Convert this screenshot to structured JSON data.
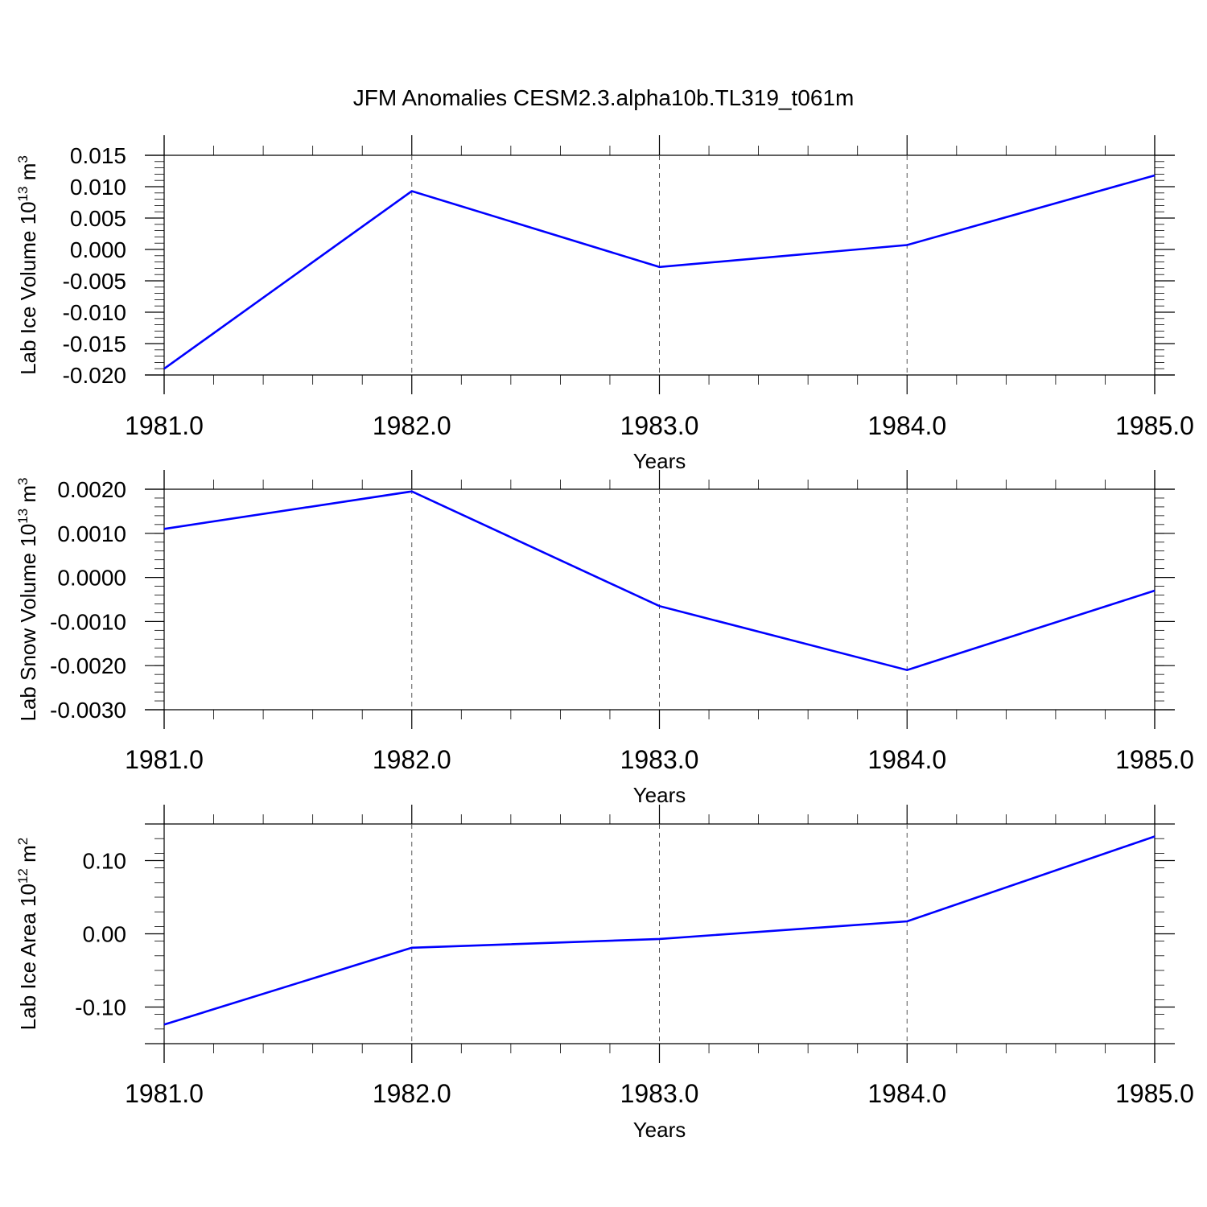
{
  "title": "JFM Anomalies CESM2.3.alpha10b.TL319_t061m",
  "chart_data": [
    {
      "type": "line",
      "ylabel": "Lab Ice Volume 10",
      "ylabel_exp": "13",
      "ylabel_unit": " m",
      "ylabel_unit_exp": "3",
      "xlabel": "Years",
      "x": [
        1981.0,
        1982.0,
        1983.0,
        1984.0,
        1985.0
      ],
      "x_tick_labels": [
        "1981.0",
        "1982.0",
        "1983.0",
        "1984.0",
        "1985.0"
      ],
      "y_tick_values": [
        0.015,
        0.01,
        0.005,
        0.0,
        -0.005,
        -0.01,
        -0.015,
        -0.02
      ],
      "y_tick_labels": [
        "0.015",
        "0.010",
        "0.005",
        "0.000",
        "-0.005",
        "-0.010",
        "-0.015",
        "-0.020"
      ],
      "ylim": [
        -0.02,
        0.015
      ],
      "xlim": [
        1981.0,
        1985.0
      ],
      "series": [
        {
          "values": [
            -0.019,
            0.0093,
            -0.0028,
            0.0007,
            0.0118
          ]
        }
      ],
      "line_color": "#0000ff",
      "grid": "vertical dashed at x ticks"
    },
    {
      "type": "line",
      "ylabel": "Lab Snow Volume 10",
      "ylabel_exp": "13",
      "ylabel_unit": " m",
      "ylabel_unit_exp": "3",
      "xlabel": "Years",
      "x": [
        1981.0,
        1982.0,
        1983.0,
        1984.0,
        1985.0
      ],
      "x_tick_labels": [
        "1981.0",
        "1982.0",
        "1983.0",
        "1984.0",
        "1985.0"
      ],
      "y_tick_values": [
        0.002,
        0.001,
        0.0,
        -0.001,
        -0.002,
        -0.003
      ],
      "y_tick_labels": [
        "0.0020",
        "0.0010",
        "0.0000",
        "-0.0010",
        "-0.0020",
        "-0.0030"
      ],
      "ylim": [
        -0.003,
        0.002
      ],
      "xlim": [
        1981.0,
        1985.0
      ],
      "series": [
        {
          "values": [
            0.0011,
            0.00195,
            -0.00065,
            -0.0021,
            -0.0003
          ]
        }
      ],
      "line_color": "#0000ff",
      "grid": "vertical dashed at x ticks"
    },
    {
      "type": "line",
      "ylabel": "Lab Ice Area 10",
      "ylabel_exp": "12",
      "ylabel_unit": " m",
      "ylabel_unit_exp": "2",
      "xlabel": "Years",
      "x": [
        1981.0,
        1982.0,
        1983.0,
        1984.0,
        1985.0
      ],
      "x_tick_labels": [
        "1981.0",
        "1982.0",
        "1983.0",
        "1984.0",
        "1985.0"
      ],
      "y_tick_values": [
        0.1,
        0.0,
        -0.1
      ],
      "y_tick_labels": [
        "0.10",
        "0.00",
        "-0.10"
      ],
      "ylim": [
        -0.15,
        0.15
      ],
      "xlim": [
        1981.0,
        1985.0
      ],
      "series": [
        {
          "values": [
            -0.124,
            -0.019,
            -0.007,
            0.017,
            0.133
          ]
        }
      ],
      "line_color": "#0000ff",
      "grid": "vertical dashed at x ticks"
    }
  ]
}
